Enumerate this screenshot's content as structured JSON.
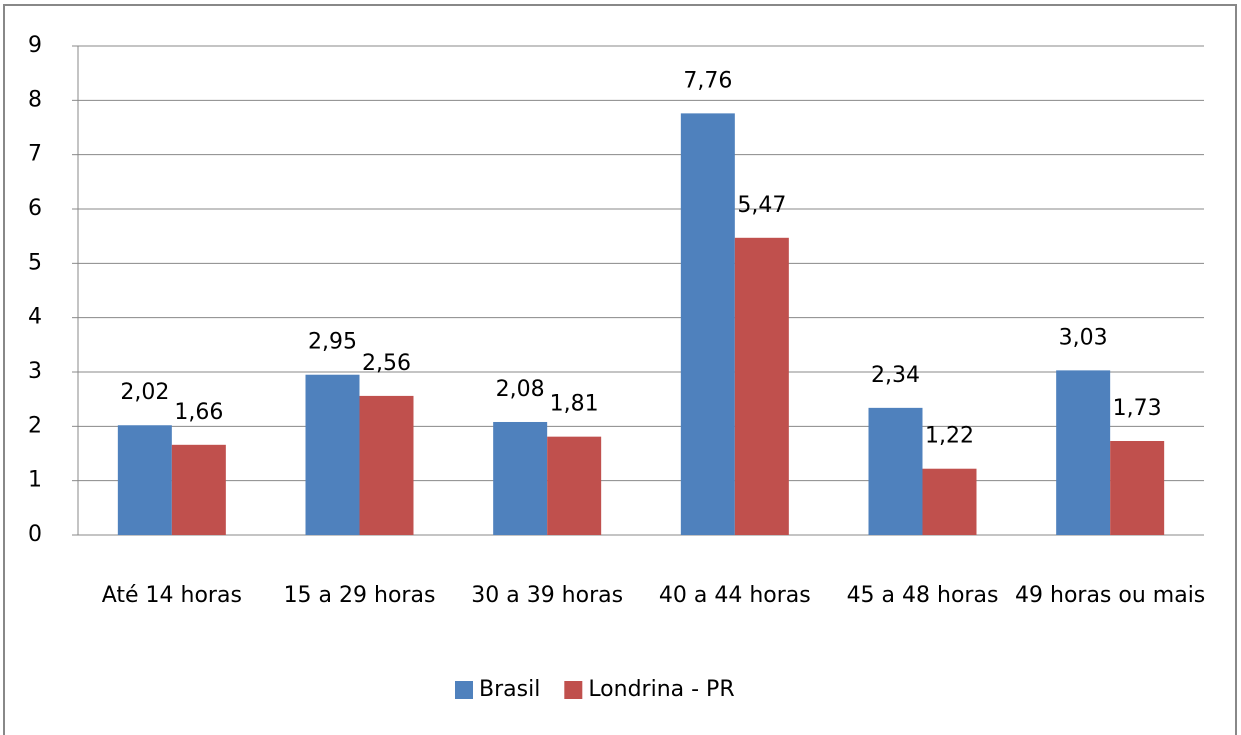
{
  "chart_data": {
    "type": "bar",
    "categories": [
      "Até 14 horas",
      "15 a 29 horas",
      "30 a 39 horas",
      "40 a 44 horas",
      "45 a 48 horas",
      "49 horas ou mais"
    ],
    "series": [
      {
        "name": "Brasil",
        "color": "#4f81bd",
        "values": [
          2.02,
          2.95,
          2.08,
          7.76,
          2.34,
          3.03
        ],
        "value_labels": [
          "2,02",
          "2,95",
          "2,08",
          "7,76",
          "2,34",
          "3,03"
        ]
      },
      {
        "name": "Londrina - PR",
        "color": "#c0504d",
        "values": [
          1.66,
          2.56,
          1.81,
          5.47,
          1.22,
          1.73
        ],
        "value_labels": [
          "1,66",
          "2,56",
          "1,81",
          "5,47",
          "1,22",
          "1,73"
        ]
      }
    ],
    "ylim": [
      0,
      9
    ],
    "yticks": [
      0,
      1,
      2,
      3,
      4,
      5,
      6,
      7,
      8,
      9
    ],
    "grid": true,
    "legend": "bottom"
  }
}
